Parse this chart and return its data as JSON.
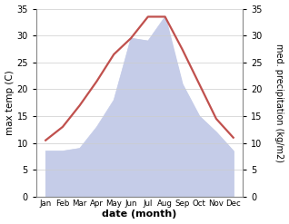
{
  "months": [
    "Jan",
    "Feb",
    "Mar",
    "Apr",
    "May",
    "Jun",
    "Jul",
    "Aug",
    "Sep",
    "Oct",
    "Nov",
    "Dec"
  ],
  "max_temp": [
    10.5,
    13.0,
    17.0,
    21.5,
    26.5,
    29.5,
    33.5,
    33.5,
    27.5,
    21.0,
    14.5,
    11.0
  ],
  "precipitation": [
    8.5,
    8.5,
    9.0,
    13.0,
    18.0,
    29.5,
    29.0,
    33.5,
    21.0,
    15.0,
    12.0,
    8.5
  ],
  "temp_color": "#c0504d",
  "precip_fill_color": "#c5cce8",
  "ylim_left": [
    0,
    35
  ],
  "ylim_right": [
    0,
    35
  ],
  "yticks_left": [
    0,
    5,
    10,
    15,
    20,
    25,
    30,
    35
  ],
  "yticks_right": [
    0,
    5,
    10,
    15,
    20,
    25,
    30,
    35
  ],
  "xlabel": "date (month)",
  "ylabel_left": "max temp (C)",
  "ylabel_right": "med. precipitation (kg/m2)",
  "bg_color": "#ffffff",
  "line_width": 1.6
}
